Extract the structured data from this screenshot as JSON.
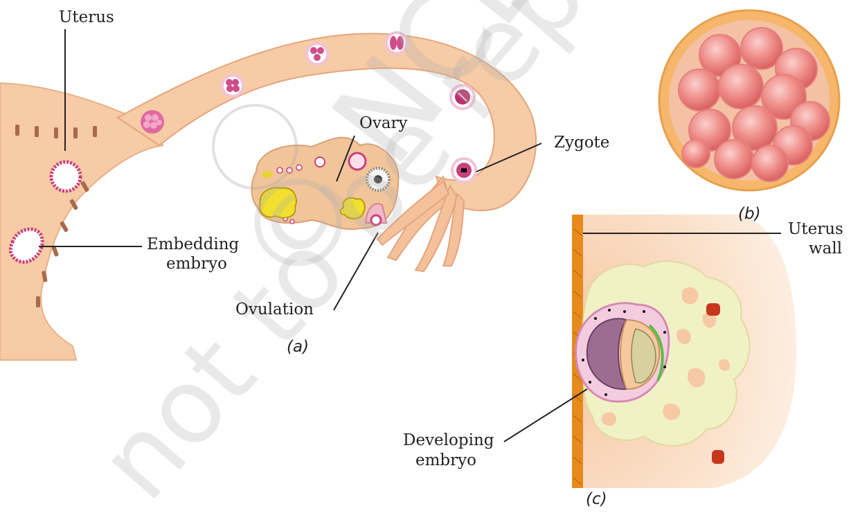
{
  "labels": {
    "uterus": "Uterus",
    "ovary": "Ovary",
    "zygote": "Zygote",
    "embedding_embryo_1": "Embedding",
    "embedding_embryo_2": "embryo",
    "ovulation": "Ovulation",
    "uterus_wall_1": "Uterus",
    "uterus_wall_2": "wall",
    "developing_embryo_1": "Developing",
    "developing_embryo_2": "embryo"
  },
  "captions": {
    "a": "(a)",
    "b": "(b)",
    "c": "(c)"
  },
  "watermark": {
    "line1": "© NCERT",
    "line2": "not to be republished"
  },
  "colors": {
    "tissue": "#f4c9a3",
    "tissue_dark": "#e2a77a",
    "cell_pink": "#c8407c",
    "follicle_yellow": "#e8d33a",
    "cytoplasm_yellow": "#f1f1c6",
    "wall_orange": "#e7891c",
    "morula_red": "#ee8a86"
  }
}
